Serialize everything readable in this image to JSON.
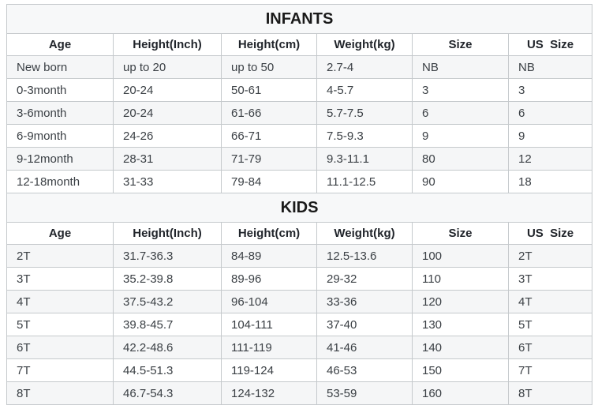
{
  "colors": {
    "page_bg": "#ffffff",
    "stripe_bg": "#f5f6f7",
    "title_bg": "#f7f8f9",
    "border": "#c5c9cc",
    "header_text": "#21252b",
    "data_text": "#3b4045"
  },
  "tables": [
    {
      "title": "INFANTS",
      "columns": [
        "Age",
        "Height(Inch)",
        "Height(cm)",
        "Weight(kg)",
        "Size",
        "US  Size"
      ],
      "rows": [
        [
          "New born",
          "up to 20",
          "up to 50",
          "2.7-4",
          "NB",
          "NB"
        ],
        [
          "0-3month",
          "20-24",
          "50-61",
          "4-5.7",
          "3",
          "3"
        ],
        [
          "3-6month",
          "20-24",
          "61-66",
          "5.7-7.5",
          "6",
          "6"
        ],
        [
          "6-9month",
          "24-26",
          "66-71",
          "7.5-9.3",
          "9",
          "9"
        ],
        [
          "9-12month",
          "28-31",
          "71-79",
          "9.3-11.1",
          "80",
          "12"
        ],
        [
          "12-18month",
          "31-33",
          "79-84",
          "11.1-12.5",
          "90",
          "18"
        ]
      ]
    },
    {
      "title": "KIDS",
      "columns": [
        "Age",
        "Height(Inch)",
        "Height(cm)",
        "Weight(kg)",
        "Size",
        "US  Size"
      ],
      "rows": [
        [
          "2T",
          "31.7-36.3",
          "84-89",
          "12.5-13.6",
          "100",
          "2T"
        ],
        [
          "3T",
          "35.2-39.8",
          "89-96",
          "29-32",
          "110",
          "3T"
        ],
        [
          "4T",
          "37.5-43.2",
          "96-104",
          "33-36",
          "120",
          "4T"
        ],
        [
          "5T",
          "39.8-45.7",
          "104-111",
          "37-40",
          "130",
          "5T"
        ],
        [
          "6T",
          "42.2-48.6",
          "111-119",
          "41-46",
          "140",
          "6T"
        ],
        [
          "7T",
          "44.5-51.3",
          "119-124",
          "46-53",
          "150",
          "7T"
        ],
        [
          "8T",
          "46.7-54.3",
          "124-132",
          "53-59",
          "160",
          "8T"
        ]
      ]
    }
  ]
}
